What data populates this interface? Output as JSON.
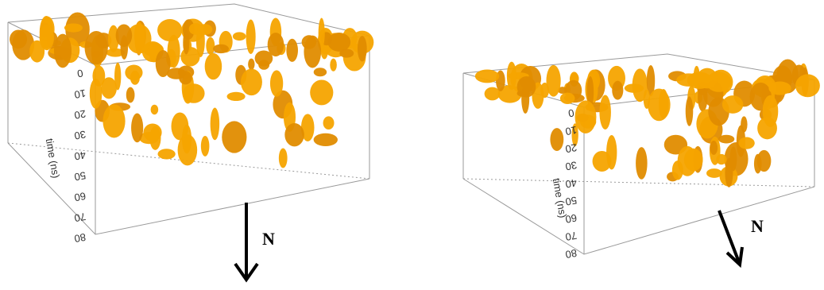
{
  "panels": [
    {
      "axis_label": "time (ns)",
      "ticks": [
        "0",
        "10",
        "20",
        "30",
        "40",
        "50",
        "60",
        "70",
        "80"
      ],
      "north": "N"
    },
    {
      "axis_label": "time (ns)",
      "ticks": [
        "0",
        "10",
        "20",
        "30",
        "40",
        "50",
        "60",
        "70",
        "80"
      ],
      "north": "N"
    }
  ]
}
